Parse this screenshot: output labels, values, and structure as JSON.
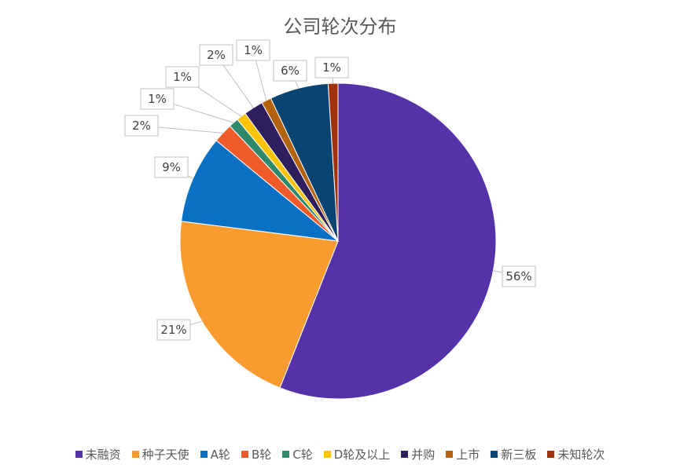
{
  "chart_data": {
    "type": "pie",
    "title": "公司轮次分布",
    "categories": [
      "未融资",
      "种子天使",
      "A轮",
      "B轮",
      "C轮",
      "D轮及以上",
      "并购",
      "上市",
      "新三板",
      "未知轮次"
    ],
    "values": [
      56,
      21,
      9,
      2,
      1,
      1,
      2,
      1,
      6,
      1
    ],
    "data_labels": [
      "56%",
      "21%",
      "9%",
      "2%",
      "1%",
      "1%",
      "2%",
      "1%",
      "6%",
      "1%"
    ],
    "colors": [
      "#5532A8",
      "#F99B2E",
      "#0A70C4",
      "#EF5B2A",
      "#2E8A6A",
      "#FBC30A",
      "#2E1E5E",
      "#B3620F",
      "#0A4472",
      "#A0320C"
    ],
    "legend_position": "bottom"
  }
}
